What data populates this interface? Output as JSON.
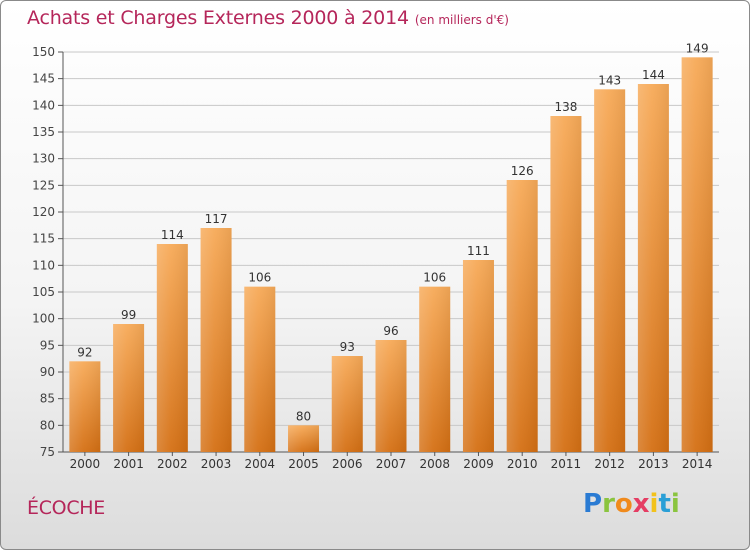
{
  "header": {
    "title": "Achats et Charges Externes 2000 à 2014",
    "unit": "(en milliers d'€)"
  },
  "footer": {
    "town": "ÉCOCHE",
    "logo_text": "Proxiti"
  },
  "colors": {
    "title": "#b5265a",
    "bar_light": "#f7a956",
    "bar_dark": "#d46f13",
    "grid": "#c8c8c8"
  },
  "chart_data": {
    "type": "bar",
    "title": "Achats et Charges Externes 2000 à 2014",
    "xlabel": "",
    "ylabel": "",
    "categories": [
      "2000",
      "2001",
      "2002",
      "2003",
      "2004",
      "2005",
      "2006",
      "2007",
      "2008",
      "2009",
      "2010",
      "2011",
      "2012",
      "2013",
      "2014"
    ],
    "values": [
      92,
      99,
      114,
      117,
      106,
      80,
      93,
      96,
      106,
      111,
      126,
      138,
      143,
      144,
      149
    ],
    "ylim": [
      75,
      150
    ],
    "yticks": [
      75,
      80,
      85,
      90,
      95,
      100,
      105,
      110,
      115,
      120,
      125,
      130,
      135,
      140,
      145,
      150
    ],
    "grid": true,
    "data_labels": true
  }
}
